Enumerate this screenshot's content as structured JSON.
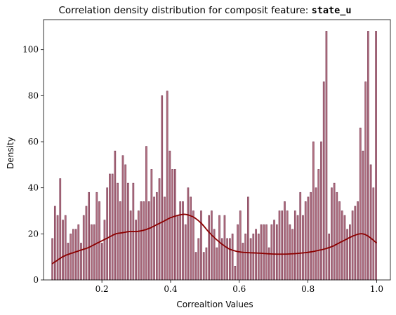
{
  "chart_data": {
    "type": "bar",
    "title": "Correlation density distribution for composit feature: ",
    "title_bold": "state_u",
    "xlabel": "Correaltion Values",
    "ylabel": "Density",
    "xlim": [
      0.03,
      1.04
    ],
    "ylim": [
      0,
      113
    ],
    "xticks": [
      0.2,
      0.4,
      0.6,
      0.8,
      1.0
    ],
    "xtick_labels": [
      "0.2",
      "0.4",
      "0.6",
      "0.8",
      "1.0"
    ],
    "yticks": [
      0,
      20,
      40,
      60,
      80,
      100
    ],
    "ytick_labels": [
      "0",
      "20",
      "40",
      "60",
      "80",
      "100"
    ],
    "grid": false,
    "bar_color": "#b07080",
    "bar_edge_color": "#7a3a55",
    "kde_color": "#8b0000",
    "bins": {
      "x": [
        0.0558,
        0.0634,
        0.071,
        0.0786,
        0.0862,
        0.0938,
        0.1014,
        0.109,
        0.1166,
        0.1242,
        0.1318,
        0.1394,
        0.147,
        0.1546,
        0.1622,
        0.1698,
        0.1774,
        0.185,
        0.1926,
        0.2002,
        0.2078,
        0.2154,
        0.223,
        0.2306,
        0.2382,
        0.2458,
        0.2534,
        0.261,
        0.2686,
        0.2762,
        0.2838,
        0.2914,
        0.299,
        0.3066,
        0.3142,
        0.3218,
        0.3294,
        0.337,
        0.3446,
        0.3522,
        0.3598,
        0.3674,
        0.375,
        0.3826,
        0.3902,
        0.3978,
        0.4054,
        0.413,
        0.4206,
        0.4282,
        0.4358,
        0.4434,
        0.451,
        0.4586,
        0.4662,
        0.4738,
        0.4814,
        0.489,
        0.4966,
        0.5042,
        0.5118,
        0.5194,
        0.527,
        0.5346,
        0.5422,
        0.5498,
        0.5574,
        0.565,
        0.5726,
        0.5802,
        0.5878,
        0.5954,
        0.603,
        0.6106,
        0.6182,
        0.6258,
        0.6334,
        0.641,
        0.6486,
        0.6562,
        0.6638,
        0.6714,
        0.679,
        0.6866,
        0.6942,
        0.7018,
        0.7094,
        0.717,
        0.7246,
        0.7322,
        0.7398,
        0.7474,
        0.755,
        0.7626,
        0.7702,
        0.7778,
        0.7854,
        0.793,
        0.8006,
        0.8082,
        0.8158,
        0.8234,
        0.831,
        0.8386,
        0.8462,
        0.8538,
        0.8614,
        0.869,
        0.8766,
        0.8842,
        0.8918,
        0.8994,
        0.907,
        0.9146,
        0.9222,
        0.9298,
        0.9374,
        0.945,
        0.9526,
        0.9602,
        0.9678,
        0.9754,
        0.983,
        0.9906,
        0.9982
      ],
      "density": [
        18,
        32,
        28,
        44,
        26,
        28,
        16,
        20,
        22,
        22,
        24,
        16,
        28,
        32,
        38,
        24,
        24,
        38,
        34,
        16,
        26,
        40,
        46,
        46,
        56,
        42,
        34,
        54,
        50,
        42,
        30,
        42,
        26,
        30,
        34,
        34,
        58,
        34,
        48,
        36,
        38,
        44,
        80,
        36,
        82,
        56,
        48,
        48,
        28,
        34,
        34,
        24,
        40,
        36,
        30,
        12,
        18,
        30,
        12,
        14,
        28,
        30,
        22,
        14,
        28,
        18,
        28,
        18,
        18,
        20,
        6,
        24,
        30,
        16,
        20,
        36,
        18,
        20,
        22,
        20,
        24,
        24,
        24,
        14,
        24,
        26,
        24,
        30,
        30,
        34,
        30,
        24,
        22,
        30,
        28,
        38,
        28,
        34,
        36,
        38,
        60,
        40,
        48,
        60,
        86,
        108,
        20,
        40,
        42,
        38,
        34,
        30,
        28,
        22,
        24,
        30,
        32,
        34,
        66,
        56,
        86,
        108,
        50,
        40,
        108
      ]
    },
    "kde": {
      "x": [
        0.055,
        0.07,
        0.085,
        0.1,
        0.12,
        0.14,
        0.16,
        0.18,
        0.2,
        0.22,
        0.24,
        0.26,
        0.28,
        0.3,
        0.32,
        0.34,
        0.36,
        0.38,
        0.4,
        0.42,
        0.44,
        0.455,
        0.47,
        0.49,
        0.51,
        0.53,
        0.55,
        0.57,
        0.59,
        0.61,
        0.63,
        0.65,
        0.67,
        0.69,
        0.71,
        0.73,
        0.75,
        0.77,
        0.79,
        0.81,
        0.83,
        0.85,
        0.87,
        0.89,
        0.91,
        0.93,
        0.95,
        0.965,
        0.98,
        1.0
      ],
      "y": [
        7,
        8.5,
        10,
        11,
        12,
        13,
        14,
        15.5,
        17,
        18.5,
        20,
        20.5,
        21,
        21,
        21.5,
        22.5,
        24,
        25.5,
        27,
        28,
        28.5,
        28,
        27,
        24.5,
        21,
        18,
        15.5,
        13.5,
        12.5,
        12,
        11.8,
        11.7,
        11.5,
        11.3,
        11.2,
        11.2,
        11.3,
        11.5,
        11.8,
        12.2,
        12.8,
        13.5,
        14.5,
        16,
        17.5,
        19,
        20,
        19.8,
        18.5,
        16
      ]
    }
  }
}
